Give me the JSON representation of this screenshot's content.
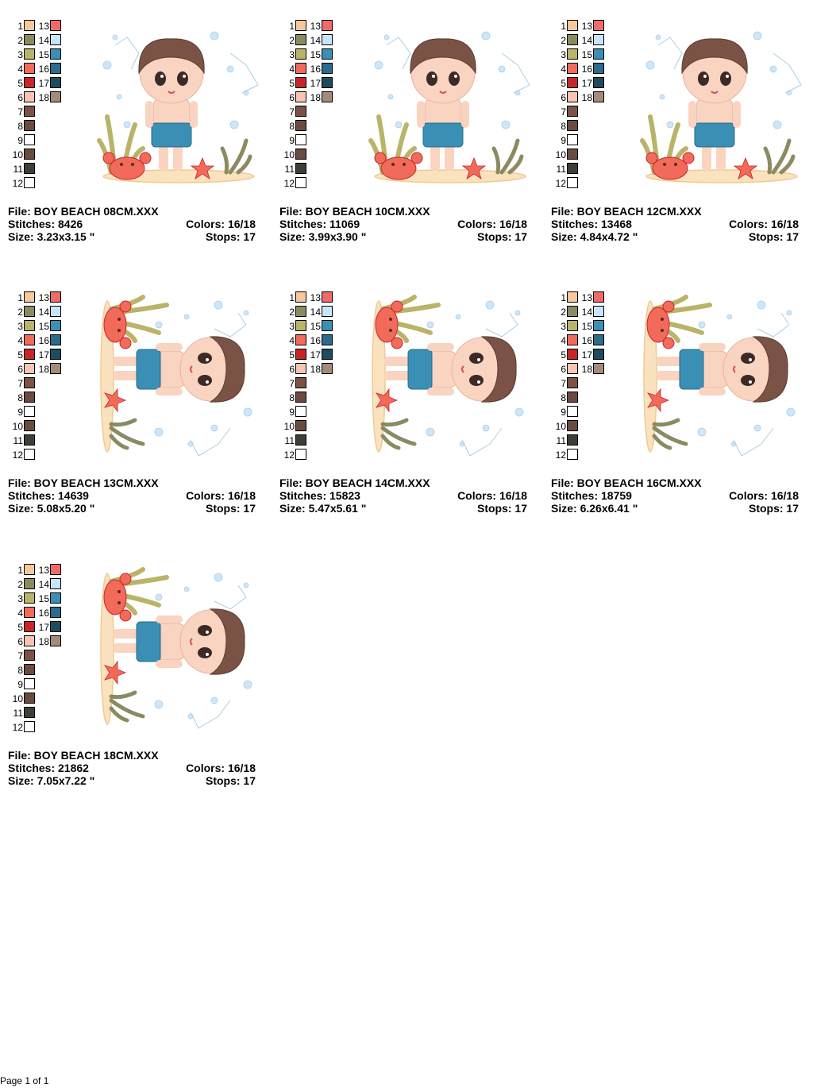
{
  "page": {
    "footer": "Page 1 of 1"
  },
  "palette": {
    "colors": [
      "#f6c99c",
      "#8c8a62",
      "#b9b468",
      "#f26b5a",
      "#c8252a",
      "#f7c5b1",
      "#7b5346",
      "#6d4a40",
      "#ffffff",
      "#6b4a40",
      "#3f3d35",
      "#ffffff",
      "#ef6b6b",
      "#c9e4fb",
      "#3a8fb5",
      "#2b6b8c",
      "#1d4c5c",
      "#a48a7d"
    ],
    "left_numbers": [
      "1",
      "2",
      "3",
      "4",
      "5",
      "6",
      "7",
      "8",
      "9",
      "10",
      "11",
      "12"
    ],
    "right_numbers": [
      "13",
      "14",
      "15",
      "16",
      "17",
      "18"
    ]
  },
  "designs": [
    {
      "file": "File: BOY BEACH 08CM.XXX",
      "stitches": "Stitches: 8426",
      "colors": "Colors: 16/18",
      "size": "Size: 3.23x3.15 \"",
      "stops": "Stops: 17",
      "orientation": "upright"
    },
    {
      "file": "File: BOY BEACH 10CM.XXX",
      "stitches": "Stitches: 11069",
      "colors": "Colors: 16/18",
      "size": "Size: 3.99x3.90 \"",
      "stops": "Stops: 17",
      "orientation": "upright"
    },
    {
      "file": "File: BOY BEACH 12CM.XXX",
      "stitches": "Stitches: 13468",
      "colors": "Colors: 16/18",
      "size": "Size: 4.84x4.72 \"",
      "stops": "Stops: 17",
      "orientation": "upright"
    },
    {
      "file": "File: BOY BEACH 13CM.XXX",
      "stitches": "Stitches: 14639",
      "colors": "Colors: 16/18",
      "size": "Size: 5.08x5.20 \"",
      "stops": "Stops: 17",
      "orientation": "rotated"
    },
    {
      "file": "File: BOY BEACH 14CM.XXX",
      "stitches": "Stitches: 15823",
      "colors": "Colors: 16/18",
      "size": "Size: 5.47x5.61 \"",
      "stops": "Stops: 17",
      "orientation": "rotated"
    },
    {
      "file": "File: BOY BEACH 16CM.XXX",
      "stitches": "Stitches: 18759",
      "colors": "Colors: 16/18",
      "size": "Size: 6.26x6.41 \"",
      "stops": "Stops: 17",
      "orientation": "rotated"
    },
    {
      "file": "File: BOY BEACH 18CM.XXX",
      "stitches": "Stitches: 21862",
      "colors": "Colors: 16/18",
      "size": "Size: 7.05x7.22 \"",
      "stops": "Stops: 17",
      "orientation": "rotated"
    }
  ]
}
